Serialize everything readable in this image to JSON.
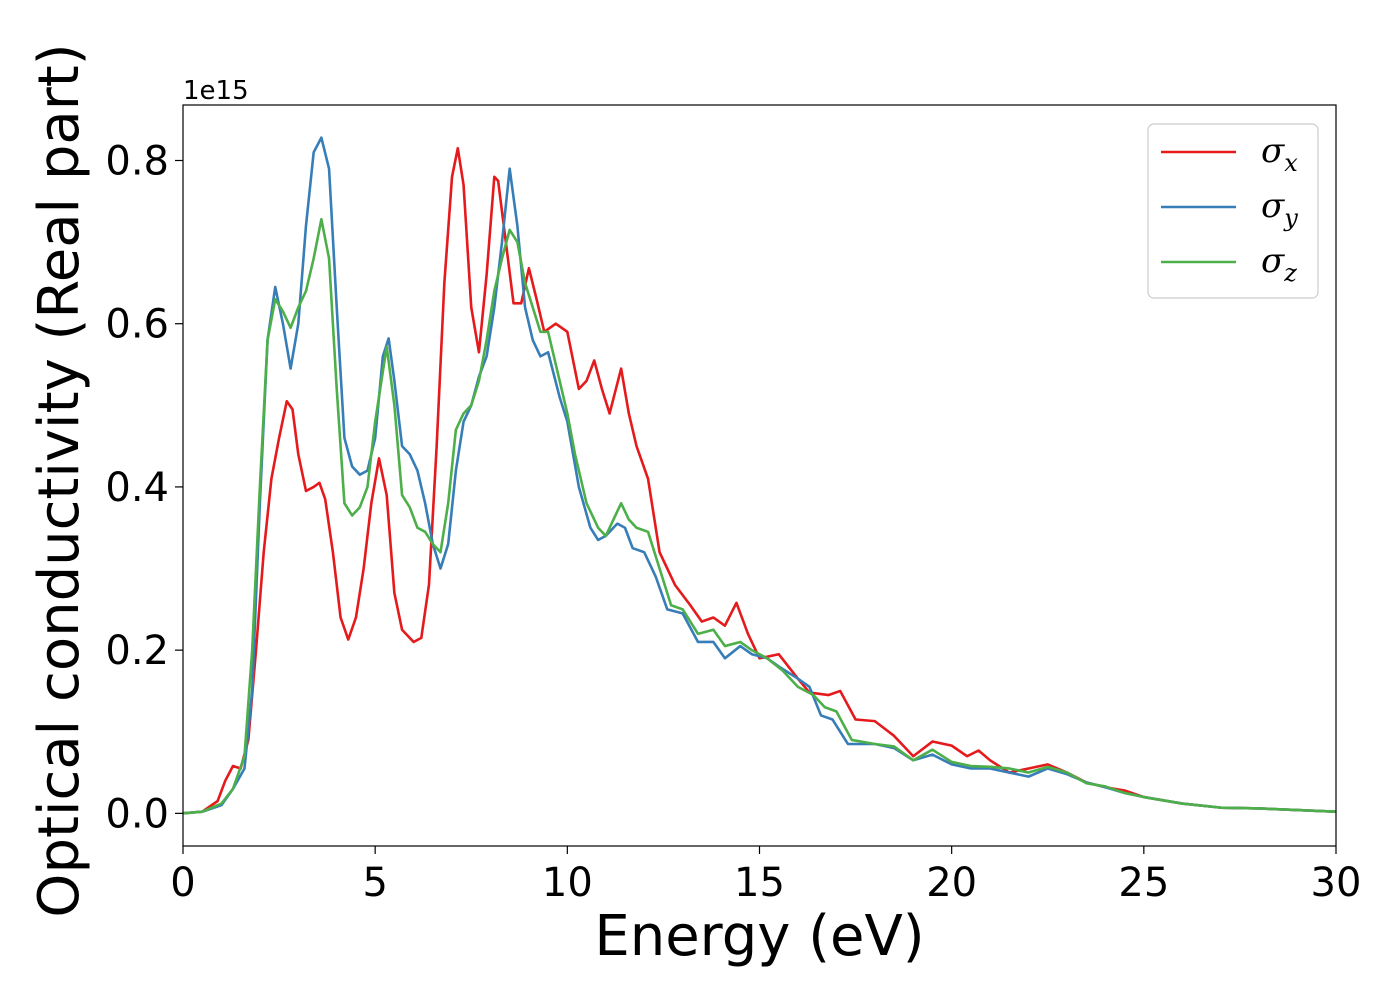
{
  "chart_data": {
    "type": "line",
    "title": "",
    "xlabel": "Energy (eV)",
    "ylabel": "Optical conductivity (Real part)",
    "y_offset_label": "1e15",
    "xlim": [
      0,
      30
    ],
    "ylim": [
      -0.04,
      0.868
    ],
    "x_ticks": [
      0,
      5,
      10,
      15,
      20,
      25,
      30
    ],
    "x_tick_labels": [
      "0",
      "5",
      "10",
      "15",
      "20",
      "25",
      "30"
    ],
    "y_ticks": [
      0.0,
      0.2,
      0.4,
      0.6,
      0.8
    ],
    "y_tick_labels": [
      "0.0",
      "0.2",
      "0.4",
      "0.6",
      "0.8"
    ],
    "grid": false,
    "legend_position": "top-right",
    "series": [
      {
        "name": "σx",
        "legend_symbol": "σ",
        "legend_sub": "x",
        "color": "#e41a1c",
        "points": [
          [
            0,
            0
          ],
          [
            0.5,
            0.002
          ],
          [
            0.9,
            0.015
          ],
          [
            1.1,
            0.04
          ],
          [
            1.3,
            0.058
          ],
          [
            1.5,
            0.055
          ],
          [
            1.7,
            0.09
          ],
          [
            1.9,
            0.2
          ],
          [
            2.1,
            0.32
          ],
          [
            2.3,
            0.41
          ],
          [
            2.5,
            0.46
          ],
          [
            2.7,
            0.505
          ],
          [
            2.85,
            0.495
          ],
          [
            3.0,
            0.44
          ],
          [
            3.2,
            0.395
          ],
          [
            3.4,
            0.4
          ],
          [
            3.55,
            0.405
          ],
          [
            3.7,
            0.385
          ],
          [
            3.9,
            0.32
          ],
          [
            4.1,
            0.24
          ],
          [
            4.3,
            0.213
          ],
          [
            4.5,
            0.24
          ],
          [
            4.7,
            0.3
          ],
          [
            4.9,
            0.38
          ],
          [
            5.1,
            0.435
          ],
          [
            5.3,
            0.39
          ],
          [
            5.5,
            0.27
          ],
          [
            5.7,
            0.225
          ],
          [
            6.0,
            0.21
          ],
          [
            6.2,
            0.215
          ],
          [
            6.4,
            0.28
          ],
          [
            6.6,
            0.45
          ],
          [
            6.8,
            0.65
          ],
          [
            7.0,
            0.78
          ],
          [
            7.15,
            0.815
          ],
          [
            7.3,
            0.77
          ],
          [
            7.5,
            0.62
          ],
          [
            7.7,
            0.565
          ],
          [
            7.9,
            0.66
          ],
          [
            8.1,
            0.78
          ],
          [
            8.2,
            0.775
          ],
          [
            8.4,
            0.7
          ],
          [
            8.6,
            0.625
          ],
          [
            8.8,
            0.625
          ],
          [
            9.0,
            0.668
          ],
          [
            9.2,
            0.63
          ],
          [
            9.4,
            0.59
          ],
          [
            9.7,
            0.6
          ],
          [
            10.0,
            0.59
          ],
          [
            10.3,
            0.52
          ],
          [
            10.5,
            0.53
          ],
          [
            10.7,
            0.555
          ],
          [
            10.9,
            0.52
          ],
          [
            11.1,
            0.49
          ],
          [
            11.4,
            0.545
          ],
          [
            11.6,
            0.49
          ],
          [
            11.8,
            0.45
          ],
          [
            12.1,
            0.41
          ],
          [
            12.4,
            0.32
          ],
          [
            12.8,
            0.28
          ],
          [
            13.2,
            0.255
          ],
          [
            13.5,
            0.235
          ],
          [
            13.8,
            0.24
          ],
          [
            14.1,
            0.23
          ],
          [
            14.4,
            0.258
          ],
          [
            14.7,
            0.22
          ],
          [
            15.0,
            0.19
          ],
          [
            15.5,
            0.195
          ],
          [
            16.0,
            0.165
          ],
          [
            16.3,
            0.148
          ],
          [
            16.8,
            0.145
          ],
          [
            17.1,
            0.15
          ],
          [
            17.5,
            0.115
          ],
          [
            18.0,
            0.113
          ],
          [
            18.5,
            0.095
          ],
          [
            19.0,
            0.07
          ],
          [
            19.5,
            0.088
          ],
          [
            20.0,
            0.083
          ],
          [
            20.4,
            0.07
          ],
          [
            20.7,
            0.077
          ],
          [
            21.0,
            0.065
          ],
          [
            21.5,
            0.05
          ],
          [
            22.0,
            0.055
          ],
          [
            22.5,
            0.06
          ],
          [
            23.0,
            0.05
          ],
          [
            23.5,
            0.038
          ],
          [
            24.0,
            0.032
          ],
          [
            24.5,
            0.028
          ],
          [
            25.0,
            0.02
          ],
          [
            26.0,
            0.012
          ],
          [
            27.0,
            0.007
          ],
          [
            28.0,
            0.006
          ],
          [
            29.0,
            0.004
          ],
          [
            30.0,
            0.002
          ]
        ]
      },
      {
        "name": "σy",
        "legend_symbol": "σ",
        "legend_sub": "y",
        "color": "#377eb8",
        "points": [
          [
            0,
            0
          ],
          [
            0.5,
            0.002
          ],
          [
            1.0,
            0.01
          ],
          [
            1.3,
            0.03
          ],
          [
            1.6,
            0.055
          ],
          [
            1.8,
            0.15
          ],
          [
            2.0,
            0.38
          ],
          [
            2.2,
            0.58
          ],
          [
            2.4,
            0.645
          ],
          [
            2.6,
            0.6
          ],
          [
            2.8,
            0.545
          ],
          [
            3.0,
            0.6
          ],
          [
            3.2,
            0.72
          ],
          [
            3.4,
            0.81
          ],
          [
            3.6,
            0.828
          ],
          [
            3.8,
            0.79
          ],
          [
            4.0,
            0.62
          ],
          [
            4.2,
            0.46
          ],
          [
            4.4,
            0.425
          ],
          [
            4.6,
            0.415
          ],
          [
            4.8,
            0.42
          ],
          [
            5.0,
            0.46
          ],
          [
            5.2,
            0.56
          ],
          [
            5.35,
            0.582
          ],
          [
            5.5,
            0.53
          ],
          [
            5.7,
            0.45
          ],
          [
            5.9,
            0.44
          ],
          [
            6.1,
            0.42
          ],
          [
            6.3,
            0.38
          ],
          [
            6.5,
            0.33
          ],
          [
            6.7,
            0.3
          ],
          [
            6.9,
            0.33
          ],
          [
            7.1,
            0.42
          ],
          [
            7.3,
            0.48
          ],
          [
            7.5,
            0.5
          ],
          [
            7.7,
            0.535
          ],
          [
            7.9,
            0.56
          ],
          [
            8.1,
            0.62
          ],
          [
            8.3,
            0.7
          ],
          [
            8.5,
            0.79
          ],
          [
            8.7,
            0.72
          ],
          [
            8.9,
            0.62
          ],
          [
            9.1,
            0.58
          ],
          [
            9.3,
            0.56
          ],
          [
            9.5,
            0.565
          ],
          [
            9.8,
            0.51
          ],
          [
            10.0,
            0.48
          ],
          [
            10.3,
            0.4
          ],
          [
            10.6,
            0.35
          ],
          [
            10.8,
            0.335
          ],
          [
            11.0,
            0.34
          ],
          [
            11.3,
            0.355
          ],
          [
            11.5,
            0.35
          ],
          [
            11.7,
            0.325
          ],
          [
            12.0,
            0.32
          ],
          [
            12.3,
            0.29
          ],
          [
            12.6,
            0.25
          ],
          [
            13.0,
            0.245
          ],
          [
            13.4,
            0.21
          ],
          [
            13.8,
            0.21
          ],
          [
            14.1,
            0.19
          ],
          [
            14.5,
            0.205
          ],
          [
            14.8,
            0.195
          ],
          [
            15.2,
            0.19
          ],
          [
            15.5,
            0.18
          ],
          [
            16.0,
            0.165
          ],
          [
            16.3,
            0.155
          ],
          [
            16.6,
            0.12
          ],
          [
            16.9,
            0.115
          ],
          [
            17.3,
            0.085
          ],
          [
            18.0,
            0.085
          ],
          [
            18.5,
            0.08
          ],
          [
            19.0,
            0.065
          ],
          [
            19.5,
            0.072
          ],
          [
            20.0,
            0.06
          ],
          [
            20.5,
            0.055
          ],
          [
            21.0,
            0.055
          ],
          [
            21.5,
            0.05
          ],
          [
            22.0,
            0.045
          ],
          [
            22.5,
            0.055
          ],
          [
            23.0,
            0.048
          ],
          [
            23.5,
            0.038
          ],
          [
            24.0,
            0.032
          ],
          [
            24.5,
            0.025
          ],
          [
            25.0,
            0.02
          ],
          [
            26.0,
            0.012
          ],
          [
            27.0,
            0.007
          ],
          [
            28.0,
            0.006
          ],
          [
            29.0,
            0.004
          ],
          [
            30.0,
            0.002
          ]
        ]
      },
      {
        "name": "σz",
        "legend_symbol": "σ",
        "legend_sub": "z",
        "color": "#4daf4a",
        "points": [
          [
            0,
            0
          ],
          [
            0.5,
            0.002
          ],
          [
            1.0,
            0.012
          ],
          [
            1.3,
            0.03
          ],
          [
            1.6,
            0.07
          ],
          [
            1.8,
            0.2
          ],
          [
            2.0,
            0.4
          ],
          [
            2.2,
            0.58
          ],
          [
            2.4,
            0.63
          ],
          [
            2.6,
            0.615
          ],
          [
            2.8,
            0.595
          ],
          [
            3.0,
            0.62
          ],
          [
            3.2,
            0.64
          ],
          [
            3.4,
            0.68
          ],
          [
            3.6,
            0.728
          ],
          [
            3.8,
            0.68
          ],
          [
            4.0,
            0.52
          ],
          [
            4.2,
            0.38
          ],
          [
            4.4,
            0.365
          ],
          [
            4.6,
            0.375
          ],
          [
            4.8,
            0.4
          ],
          [
            5.0,
            0.48
          ],
          [
            5.3,
            0.572
          ],
          [
            5.5,
            0.5
          ],
          [
            5.7,
            0.39
          ],
          [
            5.9,
            0.375
          ],
          [
            6.1,
            0.35
          ],
          [
            6.3,
            0.345
          ],
          [
            6.5,
            0.33
          ],
          [
            6.7,
            0.32
          ],
          [
            6.9,
            0.38
          ],
          [
            7.1,
            0.47
          ],
          [
            7.3,
            0.49
          ],
          [
            7.5,
            0.5
          ],
          [
            7.7,
            0.53
          ],
          [
            7.9,
            0.58
          ],
          [
            8.1,
            0.64
          ],
          [
            8.3,
            0.68
          ],
          [
            8.5,
            0.715
          ],
          [
            8.7,
            0.7
          ],
          [
            8.9,
            0.65
          ],
          [
            9.1,
            0.62
          ],
          [
            9.3,
            0.59
          ],
          [
            9.5,
            0.59
          ],
          [
            9.8,
            0.53
          ],
          [
            10.0,
            0.49
          ],
          [
            10.2,
            0.44
          ],
          [
            10.5,
            0.38
          ],
          [
            10.8,
            0.35
          ],
          [
            11.0,
            0.34
          ],
          [
            11.2,
            0.36
          ],
          [
            11.4,
            0.38
          ],
          [
            11.6,
            0.36
          ],
          [
            11.8,
            0.35
          ],
          [
            12.1,
            0.345
          ],
          [
            12.4,
            0.3
          ],
          [
            12.7,
            0.255
          ],
          [
            13.0,
            0.25
          ],
          [
            13.4,
            0.22
          ],
          [
            13.8,
            0.225
          ],
          [
            14.1,
            0.205
          ],
          [
            14.5,
            0.21
          ],
          [
            14.8,
            0.2
          ],
          [
            15.2,
            0.19
          ],
          [
            15.6,
            0.175
          ],
          [
            16.0,
            0.155
          ],
          [
            16.4,
            0.145
          ],
          [
            16.7,
            0.13
          ],
          [
            17.0,
            0.125
          ],
          [
            17.4,
            0.09
          ],
          [
            18.0,
            0.085
          ],
          [
            18.5,
            0.082
          ],
          [
            19.0,
            0.065
          ],
          [
            19.5,
            0.078
          ],
          [
            20.0,
            0.063
          ],
          [
            20.5,
            0.058
          ],
          [
            21.0,
            0.057
          ],
          [
            21.5,
            0.055
          ],
          [
            22.0,
            0.05
          ],
          [
            22.5,
            0.057
          ],
          [
            23.0,
            0.05
          ],
          [
            23.5,
            0.037
          ],
          [
            24.0,
            0.033
          ],
          [
            24.5,
            0.025
          ],
          [
            25.0,
            0.02
          ],
          [
            26.0,
            0.012
          ],
          [
            27.0,
            0.007
          ],
          [
            28.0,
            0.006
          ],
          [
            29.0,
            0.004
          ],
          [
            30.0,
            0.002
          ]
        ]
      }
    ]
  }
}
